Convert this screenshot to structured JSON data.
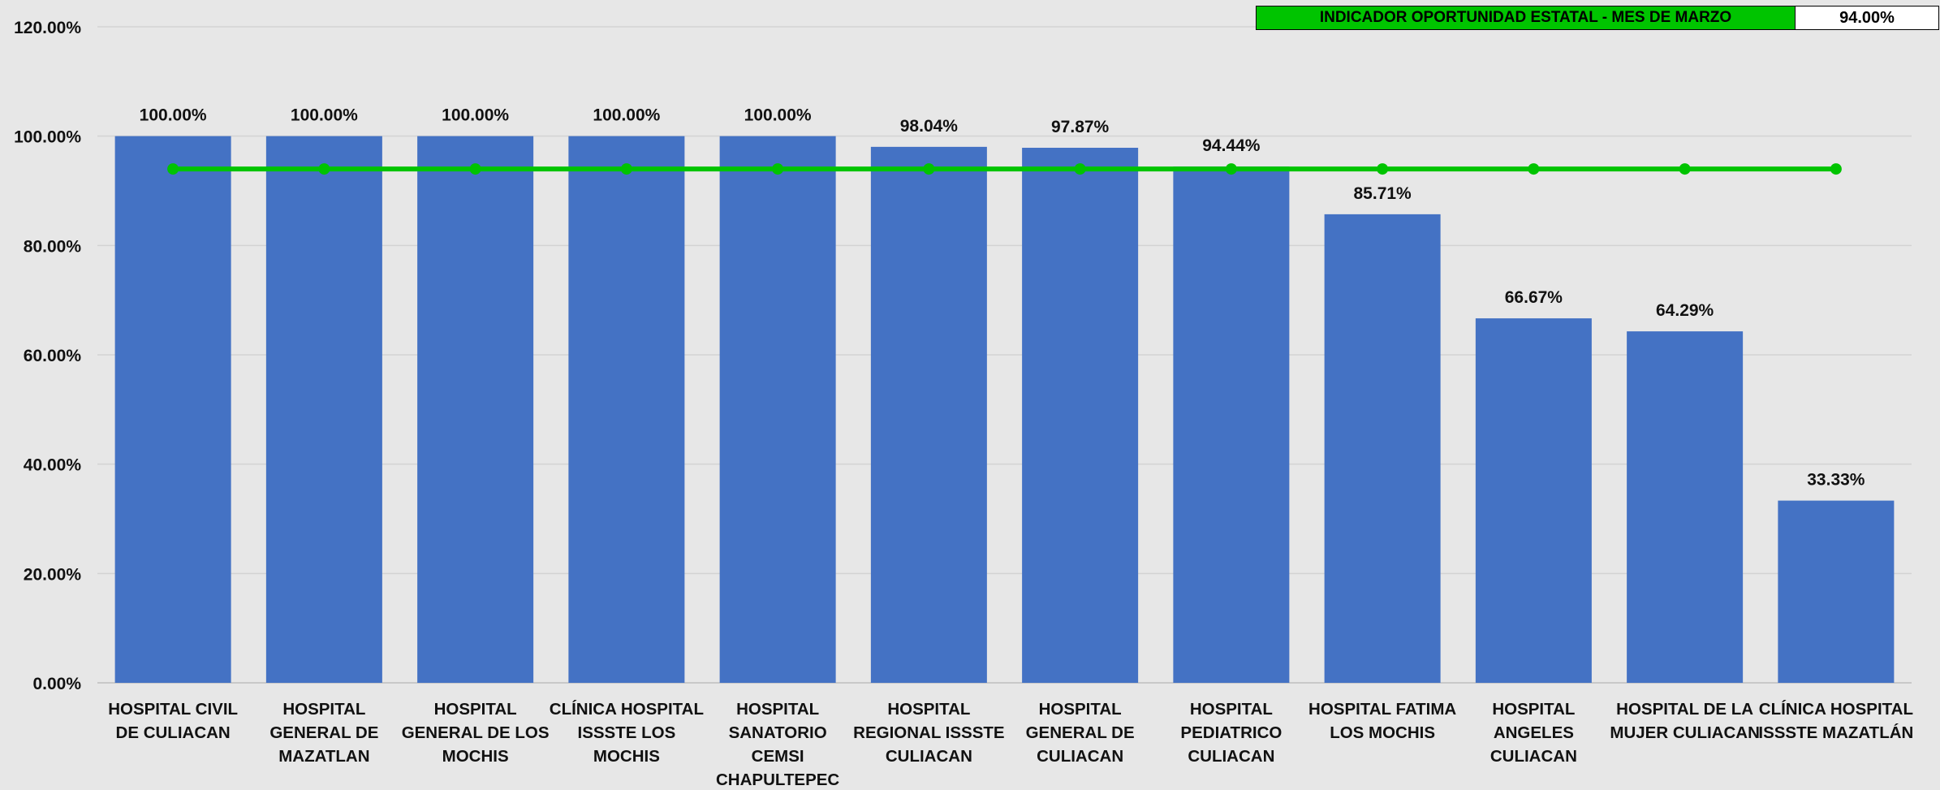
{
  "chart_data": {
    "type": "bar",
    "categories": [
      [
        "HOSPITAL CIVIL",
        "DE CULIACAN"
      ],
      [
        "HOSPITAL",
        "GENERAL DE",
        "MAZATLAN"
      ],
      [
        "HOSPITAL",
        "GENERAL DE LOS",
        "MOCHIS"
      ],
      [
        "CLÍNICA HOSPITAL",
        "ISSSTE LOS",
        "MOCHIS"
      ],
      [
        "HOSPITAL",
        "SANATORIO",
        "CEMSI",
        "CHAPULTEPEC"
      ],
      [
        "HOSPITAL",
        "REGIONAL ISSSTE",
        "CULIACAN"
      ],
      [
        "HOSPITAL",
        "GENERAL DE",
        "CULIACAN"
      ],
      [
        "HOSPITAL",
        "PEDIATRICO",
        "CULIACAN"
      ],
      [
        "HOSPITAL FATIMA",
        "LOS MOCHIS"
      ],
      [
        "HOSPITAL",
        "ANGELES",
        "CULIACAN"
      ],
      [
        "HOSPITAL DE LA",
        "MUJER CULIACAN"
      ],
      [
        "CLÍNICA HOSPITAL",
        "ISSSTE MAZATLÁN"
      ]
    ],
    "values": [
      100.0,
      100.0,
      100.0,
      100.0,
      100.0,
      98.04,
      97.87,
      94.44,
      85.71,
      66.67,
      64.29,
      33.33
    ],
    "data_labels": [
      "100.00%",
      "100.00%",
      "100.00%",
      "100.00%",
      "100.00%",
      "98.04%",
      "97.87%",
      "94.44%",
      "85.71%",
      "66.67%",
      "64.29%",
      "33.33%"
    ],
    "reference_line": {
      "value": 94.0
    },
    "ylim": [
      0,
      120
    ],
    "yticks": [
      0,
      20,
      40,
      60,
      80,
      100,
      120
    ],
    "ytick_labels": [
      "0.00%",
      "20.00%",
      "40.00%",
      "60.00%",
      "80.00%",
      "100.00%",
      "120.00%"
    ],
    "grid": true,
    "colors": {
      "bar": "#4472c4",
      "line": "#00c400",
      "background": "#e7e7e7",
      "grid": "#d3d3d3"
    }
  },
  "legend": {
    "label": "INDICADOR OPORTUNIDAD ESTATAL - MES DE MARZO",
    "value": "94.00%"
  }
}
